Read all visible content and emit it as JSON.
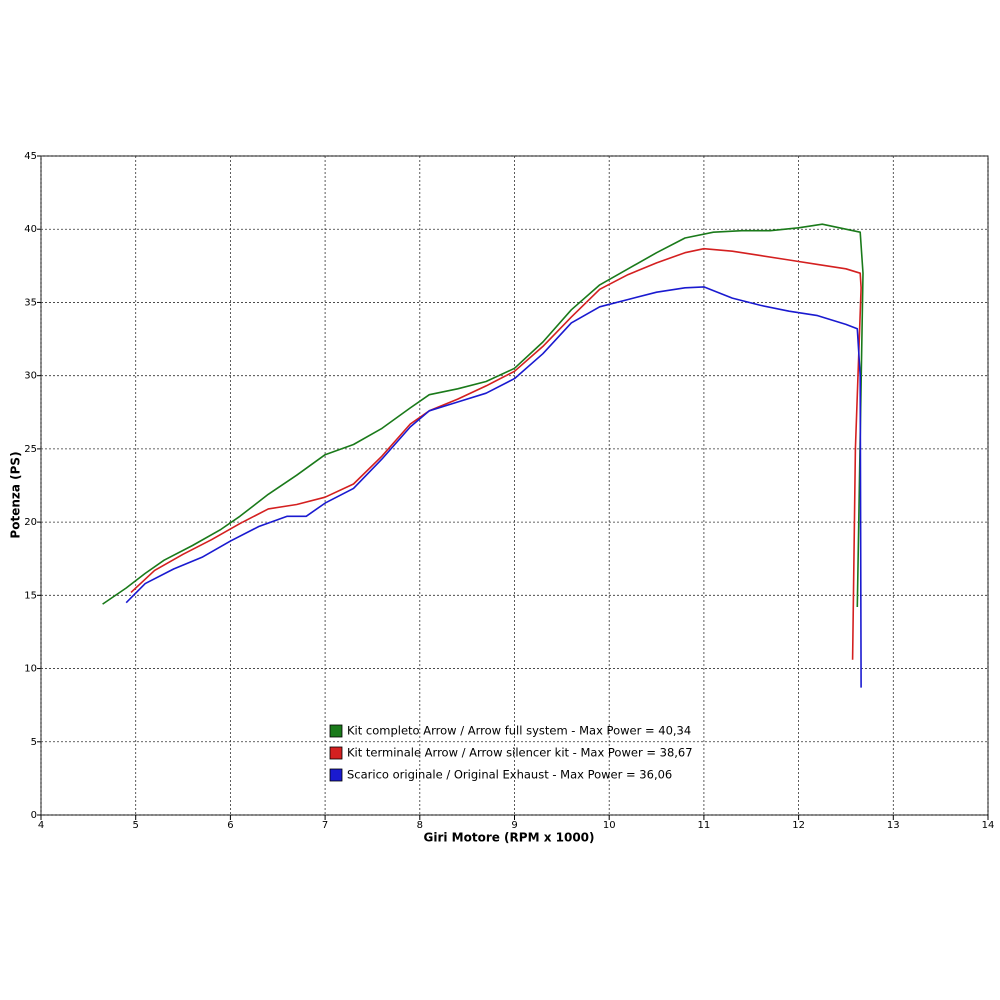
{
  "chart_data": {
    "type": "line",
    "xlabel": "Giri Motore (RPM x 1000)",
    "ylabel": "Potenza (PS)",
    "xlim": [
      4,
      14
    ],
    "xticks": [
      4,
      5,
      6,
      7,
      8,
      9,
      10,
      11,
      12,
      13,
      14
    ],
    "ylim": [
      0,
      45
    ],
    "yticks": [
      0,
      5,
      10,
      15,
      20,
      25,
      30,
      35,
      40,
      45
    ],
    "grid": true,
    "series": [
      {
        "name": "Kit completo Arrow / Arrow full system - Max Power = 40,34",
        "color": "#1a7a1a",
        "x": [
          4.65,
          4.9,
          5.1,
          5.3,
          5.6,
          5.9,
          6.1,
          6.4,
          6.7,
          7.0,
          7.3,
          7.6,
          7.9,
          8.1,
          8.4,
          8.7,
          9.0,
          9.3,
          9.6,
          9.9,
          10.2,
          10.5,
          10.8,
          11.1,
          11.4,
          11.7,
          12.0,
          12.25,
          12.5,
          12.65,
          12.68,
          12.62
        ],
        "values": [
          14.4,
          15.5,
          16.5,
          17.4,
          18.4,
          19.5,
          20.4,
          21.9,
          23.2,
          24.6,
          25.3,
          26.4,
          27.8,
          28.7,
          29.1,
          29.6,
          30.5,
          32.3,
          34.5,
          36.2,
          37.3,
          38.4,
          39.4,
          39.8,
          39.9,
          39.9,
          40.1,
          40.34,
          40.0,
          39.8,
          37.0,
          14.2
        ]
      },
      {
        "name": "Kit terminale Arrow / Arrow silencer kit - Max Power = 38,67",
        "color": "#d42020",
        "x": [
          4.95,
          5.2,
          5.5,
          5.8,
          6.1,
          6.4,
          6.7,
          7.0,
          7.3,
          7.6,
          7.9,
          8.1,
          8.4,
          8.7,
          9.0,
          9.3,
          9.6,
          9.9,
          10.2,
          10.5,
          10.8,
          11.0,
          11.3,
          11.6,
          11.9,
          12.2,
          12.5,
          12.65,
          12.66,
          12.6,
          12.57
        ],
        "values": [
          15.2,
          16.7,
          17.8,
          18.8,
          19.9,
          20.9,
          21.2,
          21.7,
          22.6,
          24.5,
          26.7,
          27.6,
          28.4,
          29.3,
          30.3,
          32.0,
          34.0,
          35.9,
          36.9,
          37.7,
          38.4,
          38.67,
          38.5,
          38.2,
          37.9,
          37.6,
          37.3,
          37.0,
          36.0,
          25.0,
          10.6
        ]
      },
      {
        "name": "Scarico originale / Original Exhaust - Max Power = 36,06",
        "color": "#1a1ad0",
        "x": [
          4.9,
          5.1,
          5.4,
          5.7,
          6.0,
          6.3,
          6.6,
          6.8,
          7.0,
          7.3,
          7.6,
          7.9,
          8.1,
          8.4,
          8.7,
          9.0,
          9.3,
          9.6,
          9.9,
          10.2,
          10.5,
          10.8,
          11.0,
          11.3,
          11.6,
          11.9,
          12.2,
          12.5,
          12.62,
          12.65,
          12.66
        ],
        "values": [
          14.5,
          15.8,
          16.8,
          17.6,
          18.7,
          19.7,
          20.4,
          20.4,
          21.3,
          22.3,
          24.3,
          26.5,
          27.6,
          28.2,
          28.8,
          29.8,
          31.5,
          33.6,
          34.7,
          35.2,
          35.7,
          36.0,
          36.06,
          35.3,
          34.8,
          34.4,
          34.1,
          33.5,
          33.2,
          30.0,
          8.7
        ]
      }
    ]
  }
}
